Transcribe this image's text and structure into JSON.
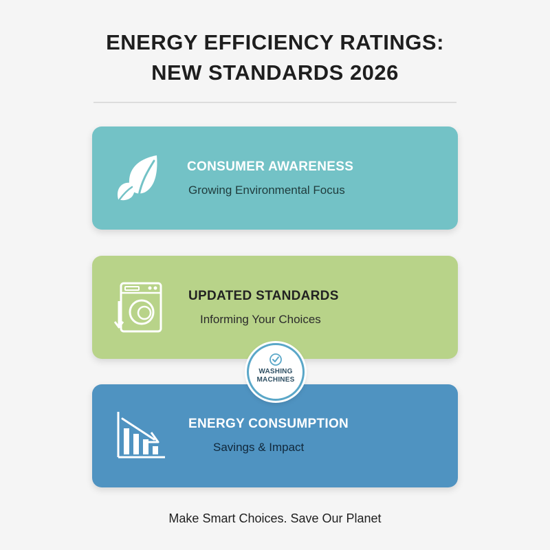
{
  "header": {
    "title_line1": "ENERGY EFFICIENCY RATINGS:",
    "title_line2": "NEW STANDARDS 2026"
  },
  "cards": [
    {
      "heading": "CONSUMER AWARENESS",
      "subtitle": "Growing Environmental Focus",
      "icon": "leaf-icon",
      "color": "#73c2c6"
    },
    {
      "heading": "UPDATED STANDARDS",
      "subtitle": "Informing Your Choices",
      "icon": "washing-machine-icon",
      "color": "#b8d389"
    },
    {
      "heading": "ENERGY CONSUMPTION",
      "subtitle": "Savings & Impact",
      "icon": "declining-bar-chart-icon",
      "color": "#4f93c1"
    }
  ],
  "badge": {
    "line1": "WASHING",
    "line2": "MACHINES",
    "icon": "check-circle-icon"
  },
  "footer": {
    "text": "Make Smart Choices. Save Our Planet"
  }
}
